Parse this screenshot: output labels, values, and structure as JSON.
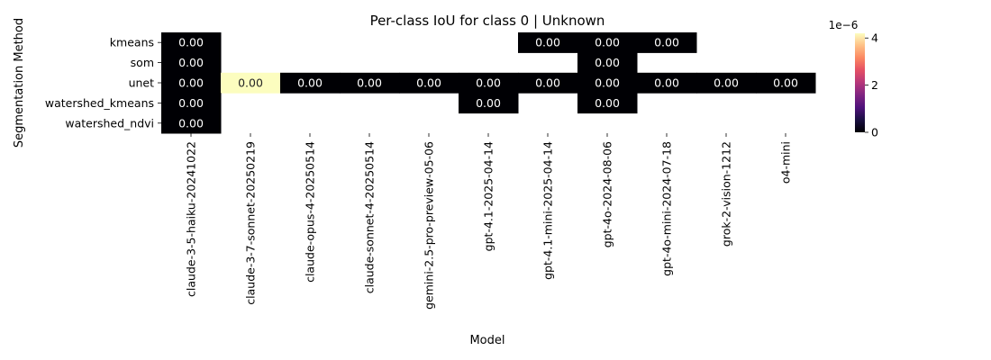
{
  "chart_data": {
    "type": "heatmap",
    "title": "Per-class IoU for class 0 | Unknown",
    "xlabel": "Model",
    "ylabel": "Segmentation Method",
    "x_categories": [
      "claude-3-5-haiku-20241022",
      "claude-3-7-sonnet-20250219",
      "claude-opus-4-20250514",
      "claude-sonnet-4-20250514",
      "gemini-2.5-pro-preview-05-06",
      "gpt-4.1-2025-04-14",
      "gpt-4.1-mini-2025-04-14",
      "gpt-4o-2024-08-06",
      "gpt-4o-mini-2024-07-18",
      "grok-2-vision-1212",
      "o4-mini"
    ],
    "y_categories": [
      "kmeans",
      "som",
      "unet",
      "watershed_kmeans",
      "watershed_ndvi"
    ],
    "values": [
      [
        0,
        null,
        null,
        null,
        null,
        null,
        0,
        0,
        0,
        null,
        null
      ],
      [
        0,
        null,
        null,
        null,
        null,
        null,
        null,
        0,
        null,
        null,
        null
      ],
      [
        0,
        4.2e-06,
        0,
        0,
        0,
        0,
        0,
        0,
        0,
        0,
        0
      ],
      [
        0,
        null,
        null,
        null,
        null,
        0,
        null,
        0,
        null,
        null,
        null
      ],
      [
        0,
        null,
        null,
        null,
        null,
        null,
        null,
        null,
        null,
        null,
        null
      ]
    ],
    "annotations": [
      [
        "0.00",
        "",
        "",
        "",
        "",
        "",
        "0.00",
        "0.00",
        "0.00",
        "",
        ""
      ],
      [
        "0.00",
        "",
        "",
        "",
        "",
        "",
        "",
        "0.00",
        "",
        "",
        ""
      ],
      [
        "0.00",
        "0.00",
        "0.00",
        "0.00",
        "0.00",
        "0.00",
        "0.00",
        "0.00",
        "0.00",
        "0.00",
        "0.00"
      ],
      [
        "0.00",
        "",
        "",
        "",
        "",
        "0.00",
        "",
        "0.00",
        "",
        "",
        ""
      ],
      [
        "0.00",
        "",
        "",
        "",
        "",
        "",
        "",
        "",
        "",
        "",
        ""
      ]
    ],
    "colormap": "magma",
    "colorbar": {
      "range": [
        0,
        4.2e-06
      ],
      "ticks": [
        "0",
        "2",
        "4"
      ],
      "tick_values": [
        0,
        2e-06,
        4e-06
      ],
      "offset_label": "1e−6"
    }
  }
}
